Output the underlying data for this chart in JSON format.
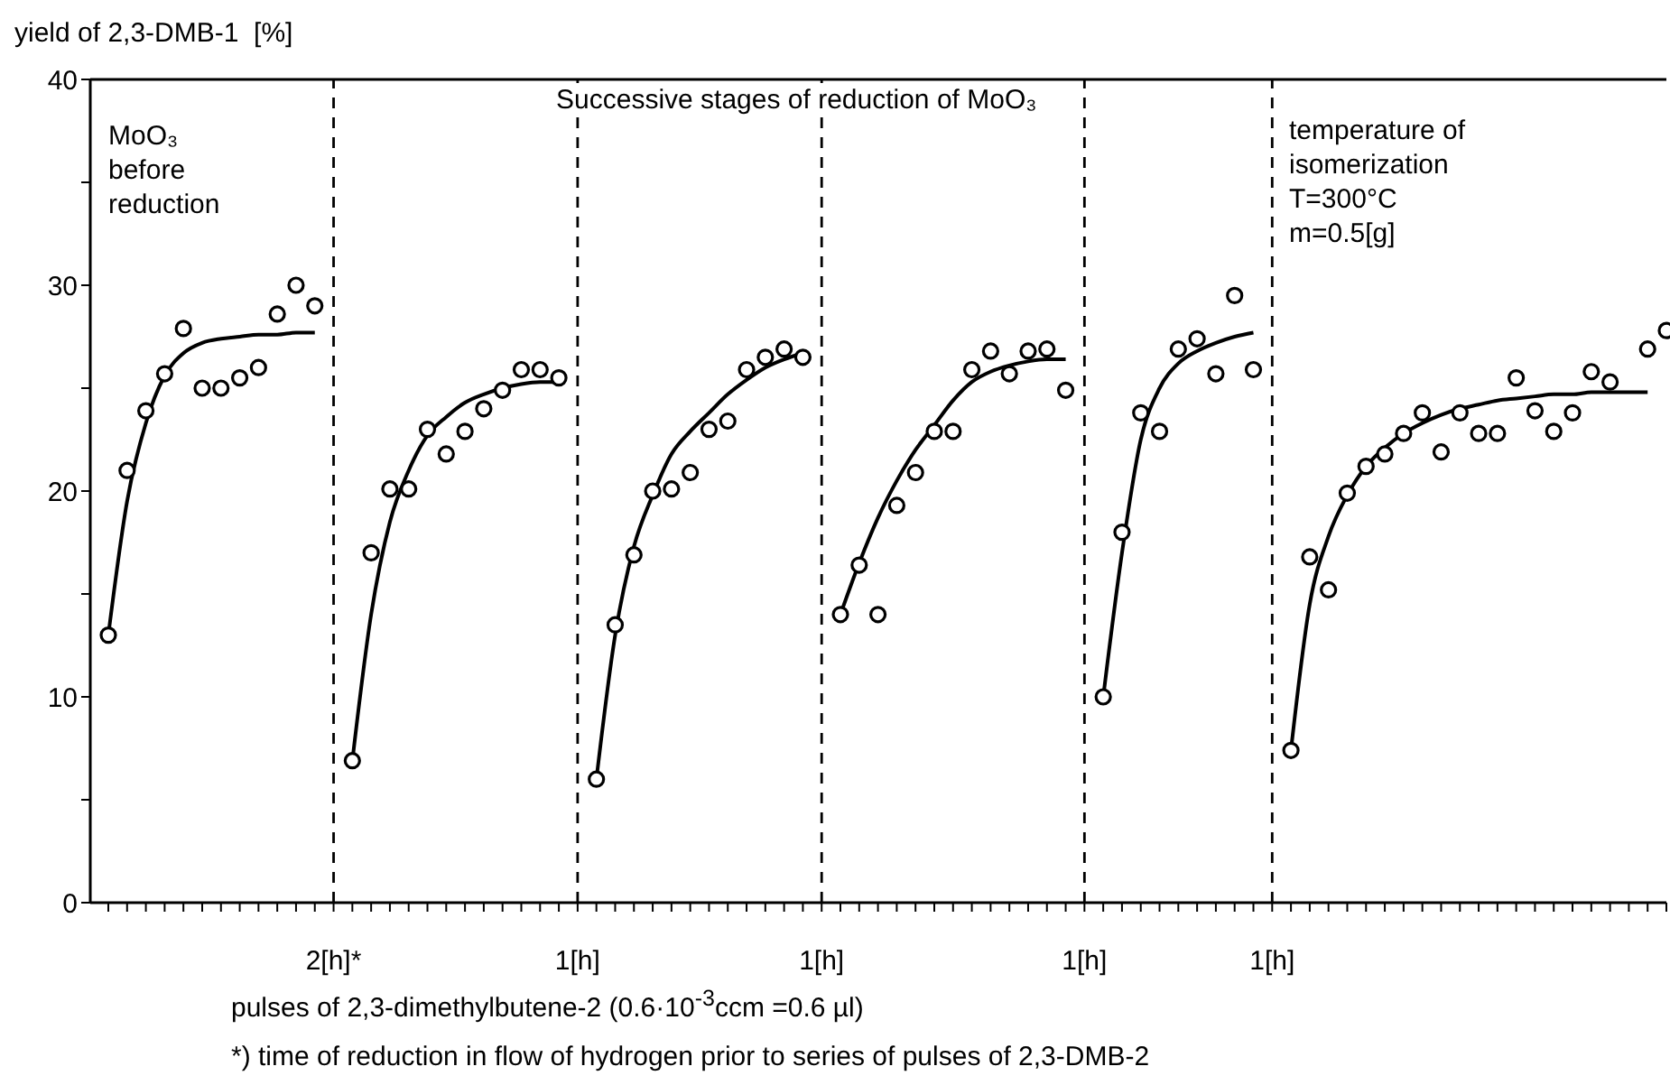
{
  "chart_data": {
    "type": "scatter",
    "ylabel": "yield of 2,3-DMB-1  [%]",
    "xlabel": "pulses of 2,3-dimethylbutene-2 (0.6·10$^{-3}$ccm =0.6 µl)",
    "annotations": [
      "MoO₃\nbefore\nreduction",
      "Successive stages of reduction of MoO₃",
      "temperature of\nisomerization\nT=300°C\nm=0.5[g]",
      "*) time of reduction in flow of hydrogen prior to series of pulses of 2,3-DMB-2"
    ],
    "categories": [
      null,
      null,
      null,
      null,
      null,
      null,
      null,
      null,
      null,
      null,
      null,
      null,
      "2[h]*",
      null,
      null,
      null,
      null,
      null,
      null,
      null,
      null,
      null,
      null,
      null,
      null,
      "1[h]",
      null,
      null,
      null,
      null,
      null,
      null,
      null,
      null,
      null,
      null,
      null,
      null,
      "1[h]",
      null,
      null,
      null,
      null,
      null,
      null,
      null,
      null,
      null,
      null,
      null,
      null,
      null,
      "1[h]",
      null,
      null,
      null,
      null,
      null,
      null,
      null,
      null,
      null,
      "1[h]",
      null,
      null,
      null,
      null,
      null,
      null,
      null,
      null,
      null,
      null,
      null,
      null,
      null,
      null,
      null,
      null,
      null,
      null,
      null,
      null,
      null
    ],
    "ylim": [
      0,
      40
    ],
    "grid": "x",
    "yticks": [
      0,
      {
        "value": 5,
        "label": null
      },
      10,
      {
        "value": 15,
        "label": null
      },
      20,
      {
        "value": 25,
        "label": null
      },
      30,
      {
        "value": 35,
        "label": null
      },
      40
    ],
    "series": [
      {
        "color": "#000000",
        "marker": "circle",
        "values": [
          13.0,
          21.0,
          23.9,
          25.7,
          27.9,
          25.0,
          25.0,
          25.5,
          26.0,
          28.6,
          30.0,
          29.0,
          null,
          6.9,
          17.0,
          20.1,
          20.1,
          23.0,
          21.8,
          22.9,
          24.0,
          24.9,
          25.9,
          25.9,
          25.5,
          null,
          6.0,
          13.5,
          16.9,
          20.0,
          20.1,
          20.9,
          23.0,
          23.4,
          25.9,
          26.5,
          26.9,
          26.5,
          null,
          14.0,
          16.4,
          14.0,
          19.3,
          20.9,
          22.9,
          22.9,
          25.9,
          26.8,
          25.7,
          26.8,
          26.9,
          24.9,
          null,
          10.0,
          18.0,
          23.8,
          22.9,
          26.9,
          27.4,
          25.7,
          29.5,
          25.9,
          null,
          7.4,
          16.8,
          15.2,
          19.9,
          21.2,
          21.8,
          22.8,
          23.8,
          21.9,
          23.8,
          22.8,
          22.8,
          25.5,
          23.9,
          22.9,
          23.8,
          25.8,
          25.3,
          null,
          26.9,
          27.8
        ]
      },
      {
        "type": "line",
        "color": "#000000",
        "marker": "none",
        "values": [
          13,
          19.5,
          23.3,
          25.6,
          26.7,
          27.2,
          27.4,
          27.5,
          27.6,
          27.6,
          27.7,
          27.7,
          null,
          6.9,
          14,
          18.5,
          21,
          22.7,
          23.6,
          24.3,
          24.7,
          25,
          25.2,
          25.3,
          25.3,
          null,
          6,
          13,
          17.3,
          19.8,
          21.8,
          22.9,
          23.8,
          24.7,
          25.4,
          26,
          26.4,
          26.7,
          null,
          14,
          16.5,
          18.7,
          20.5,
          22,
          23.2,
          24.4,
          25.3,
          25.8,
          26.1,
          26.3,
          26.4,
          26.4,
          null,
          10,
          17,
          22.5,
          25,
          26.2,
          26.8,
          27.2,
          27.5,
          27.7,
          null,
          7.4,
          14.5,
          17.8,
          19.8,
          21.2,
          22.1,
          22.8,
          23.3,
          23.7,
          24.0,
          24.2,
          24.4,
          24.5,
          24.6,
          24.7,
          24.7,
          24.8,
          24.8,
          24.8,
          24.8,
          null
        ]
      }
    ]
  }
}
